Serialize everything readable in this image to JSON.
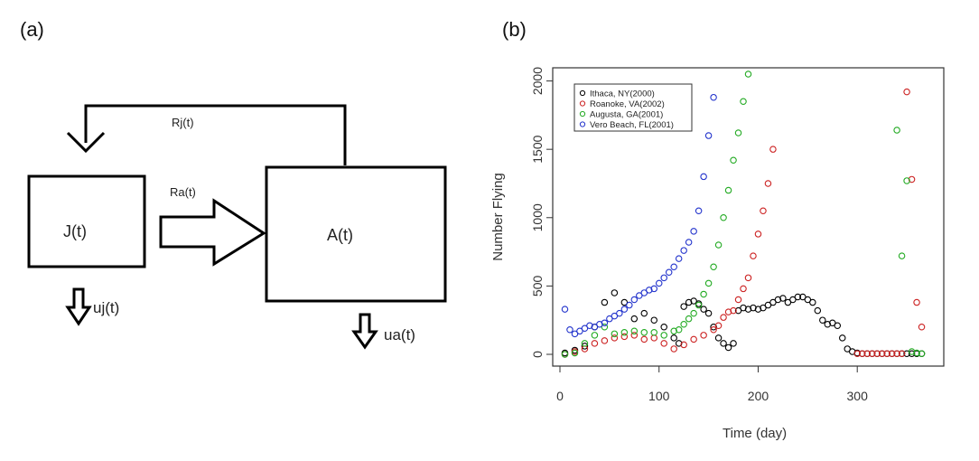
{
  "panels": {
    "a_label": "(a)",
    "b_label": "(b)"
  },
  "diagram": {
    "juvenile": "J(t)",
    "adult": "A(t)",
    "recruit_juvenile": "Rj(t)",
    "recruit_adult": "Ra(t)",
    "mortality_juvenile": "uj(t)",
    "mortality_adult": "ua(t)"
  },
  "chart_data": {
    "type": "scatter",
    "xlabel": "Time (day)",
    "ylabel": "Number Flying",
    "xlim": [
      0,
      380
    ],
    "ylim": [
      0,
      2050
    ],
    "xticks": [
      0,
      100,
      200,
      300
    ],
    "yticks": [
      0,
      500,
      1000,
      1500,
      2000
    ],
    "legend_position": "top-left",
    "marker": "open-circle",
    "series": [
      {
        "name": "Ithaca, NY(2000)",
        "color": "#000000",
        "x": [
          5,
          15,
          25,
          35,
          45,
          55,
          65,
          75,
          85,
          95,
          105,
          115,
          120,
          125,
          130,
          135,
          140,
          145,
          150,
          155,
          160,
          165,
          170,
          175,
          180,
          185,
          190,
          195,
          200,
          205,
          210,
          215,
          220,
          225,
          230,
          235,
          240,
          245,
          250,
          255,
          260,
          265,
          270,
          275,
          280,
          285,
          290,
          295,
          300,
          305,
          310,
          315,
          320,
          325,
          330,
          335,
          340,
          345,
          350,
          355,
          360,
          365
        ],
        "y": [
          10,
          30,
          60,
          200,
          380,
          450,
          380,
          260,
          300,
          250,
          200,
          120,
          80,
          350,
          380,
          390,
          370,
          330,
          300,
          200,
          120,
          80,
          50,
          80,
          320,
          340,
          330,
          340,
          330,
          340,
          360,
          380,
          400,
          410,
          380,
          400,
          420,
          420,
          400,
          380,
          320,
          250,
          220,
          230,
          210,
          120,
          40,
          20,
          10,
          5,
          5,
          5,
          5,
          5,
          5,
          5,
          5,
          5,
          5,
          5,
          5,
          5
        ]
      },
      {
        "name": "Roanoke, VA(2002)",
        "color": "#cc2222",
        "x": [
          5,
          15,
          25,
          35,
          45,
          55,
          65,
          75,
          85,
          95,
          105,
          115,
          125,
          135,
          145,
          155,
          160,
          165,
          170,
          175,
          180,
          185,
          190,
          195,
          200,
          205,
          210,
          215,
          300,
          305,
          310,
          315,
          320,
          325,
          330,
          335,
          340,
          345,
          350,
          355,
          360,
          365
        ],
        "y": [
          0,
          20,
          40,
          80,
          100,
          120,
          130,
          140,
          110,
          120,
          80,
          40,
          70,
          110,
          140,
          180,
          210,
          270,
          310,
          320,
          400,
          480,
          560,
          720,
          880,
          1050,
          1250,
          1500,
          5,
          5,
          5,
          5,
          5,
          5,
          5,
          5,
          5,
          5,
          1920,
          1280,
          380,
          200
        ]
      },
      {
        "name": "Augusta, GA(2001)",
        "color": "#22aa22",
        "x": [
          5,
          15,
          25,
          35,
          45,
          55,
          65,
          75,
          85,
          95,
          105,
          115,
          120,
          125,
          130,
          135,
          140,
          145,
          150,
          155,
          160,
          165,
          170,
          175,
          180,
          185,
          190,
          340,
          345,
          350,
          355,
          360,
          365
        ],
        "y": [
          0,
          10,
          80,
          140,
          200,
          150,
          160,
          170,
          160,
          160,
          140,
          170,
          180,
          220,
          260,
          300,
          360,
          440,
          520,
          640,
          800,
          1000,
          1200,
          1420,
          1620,
          1850,
          2050,
          1640,
          720,
          1270,
          20,
          10,
          5
        ]
      },
      {
        "name": "Vero Beach, FL(2001)",
        "color": "#2233cc",
        "x": [
          5,
          10,
          15,
          20,
          25,
          30,
          35,
          40,
          45,
          50,
          55,
          60,
          65,
          70,
          75,
          80,
          85,
          90,
          95,
          100,
          105,
          110,
          115,
          120,
          125,
          130,
          135,
          140,
          145,
          150,
          155
        ],
        "y": [
          330,
          180,
          150,
          170,
          190,
          210,
          200,
          220,
          230,
          260,
          280,
          300,
          330,
          360,
          400,
          430,
          450,
          470,
          480,
          520,
          560,
          600,
          640,
          700,
          760,
          820,
          900,
          1050,
          1300,
          1600,
          1880
        ]
      }
    ]
  }
}
